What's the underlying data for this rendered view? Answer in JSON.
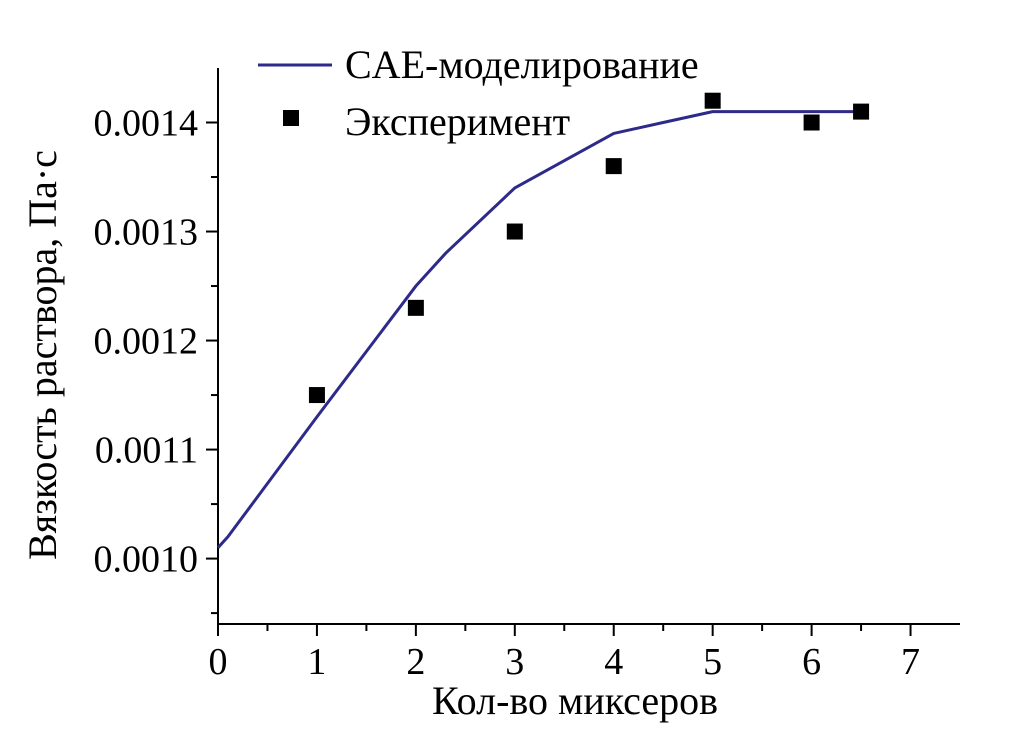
{
  "chart_data": {
    "type": "line",
    "xlabel": "Кол-во миксеров",
    "ylabel": "Вязкость раствора, Па·с",
    "xlim": [
      0,
      7.5
    ],
    "ylim": [
      0.00094,
      0.00145
    ],
    "x_ticks": [
      "0",
      "1",
      "2",
      "3",
      "4",
      "5",
      "6",
      "7"
    ],
    "y_ticks": [
      "0.0010",
      "0.0011",
      "0.0012",
      "0.0013",
      "0.0014"
    ],
    "grid": false,
    "legend_position": "top",
    "series": [
      {
        "name": "CAE-моделирование",
        "kind": "line",
        "color": "#2e2a8a",
        "x": [
          0,
          0.1,
          1,
          2,
          2.3,
          3,
          4,
          4.5,
          5,
          6,
          6.5
        ],
        "y": [
          0.00101,
          0.00102,
          0.00113,
          0.00125,
          0.00128,
          0.00134,
          0.00139,
          0.0014,
          0.00141,
          0.00141,
          0.00141
        ]
      },
      {
        "name": "Эксперимент",
        "kind": "scatter",
        "marker": "square",
        "color": "#000000",
        "x": [
          1,
          2,
          3,
          4,
          5,
          6,
          6.5
        ],
        "y": [
          0.00115,
          0.00123,
          0.0013,
          0.00136,
          0.00142,
          0.0014,
          0.00141
        ]
      }
    ]
  }
}
